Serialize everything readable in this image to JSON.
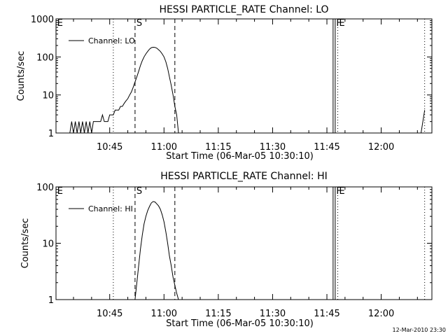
{
  "colors": {
    "background": "#ffffff",
    "foreground": "#000000"
  },
  "timestamp": "12-Mar-2010 23:30",
  "chart_data": [
    {
      "type": "line",
      "title": "HESSI PARTICLE_RATE Channel: LO",
      "xlabel": "Start Time (06-Mar-05 10:30:10)",
      "ylabel": "Counts/sec",
      "yscale": "log",
      "xlim": [
        "10:30:10",
        "12:14:00"
      ],
      "ylim": [
        1,
        1000
      ],
      "xticks": [
        "10:45",
        "11:00",
        "11:15",
        "11:30",
        "11:45",
        "12:00"
      ],
      "yticks": [
        "1",
        "10",
        "100",
        "1000"
      ],
      "legend": {
        "position": "top-left",
        "entries": [
          "Channel: LO"
        ]
      },
      "markers": [
        {
          "label": "S",
          "style": "dashed",
          "time": "10:52"
        },
        {
          "label": "",
          "style": "dashed",
          "time": "11:03"
        },
        {
          "label": "",
          "style": "dotted",
          "time": "10:46"
        },
        {
          "label": "F",
          "style": "solid",
          "time": "11:47"
        },
        {
          "label": "E",
          "style": "dotted",
          "time": "11:48"
        },
        {
          "label": "",
          "style": "dotted",
          "time": "12:12"
        },
        {
          "label": "E",
          "style": "none",
          "time": "10:30:30"
        }
      ],
      "series": [
        {
          "name": "Channel: LO",
          "segments": [
            {
              "x": [
                "10:34",
                "10:34:30",
                "10:35",
                "10:35:30",
                "10:36",
                "10:36:30",
                "10:37",
                "10:37:30",
                "10:38",
                "10:38:30",
                "10:39",
                "10:39:30",
                "10:40",
                "10:40:30",
                "10:41",
                "10:41:30",
                "10:42",
                "10:42:30",
                "10:43",
                "10:43:30",
                "10:44",
                "10:44:30",
                "10:45",
                "10:45:30",
                "10:46",
                "10:46:30",
                "10:47",
                "10:47:30",
                "10:48",
                "10:48:30",
                "10:49",
                "10:49:30",
                "10:50",
                "10:50:30",
                "10:51",
                "10:51:30",
                "10:52",
                "10:52:30",
                "10:53",
                "10:53:30",
                "10:54",
                "10:54:30",
                "10:55",
                "10:55:30",
                "10:56",
                "10:56:30",
                "10:57",
                "10:57:30",
                "10:58",
                "10:58:30",
                "10:59",
                "10:59:30",
                "11:00",
                "11:00:30",
                "11:01",
                "11:01:30",
                "11:02",
                "11:02:30",
                "11:03",
                "11:03:30",
                "11:04"
              ],
              "y": [
                1,
                2,
                1,
                2,
                1,
                2,
                1,
                2,
                1,
                2,
                1,
                2,
                1,
                2,
                2,
                2,
                2,
                2,
                3,
                2,
                2,
                2,
                3,
                3,
                3,
                4,
                4,
                4,
                5,
                5,
                6,
                7,
                8,
                10,
                12,
                16,
                22,
                30,
                42,
                60,
                80,
                100,
                120,
                140,
                160,
                175,
                180,
                178,
                170,
                155,
                140,
                120,
                100,
                75,
                50,
                30,
                18,
                10,
                5,
                3,
                1
              ]
            },
            {
              "x": [
                "12:11",
                "12:11:30",
                "12:12"
              ],
              "y": [
                1,
                2,
                4
              ]
            }
          ]
        }
      ]
    },
    {
      "type": "line",
      "title": "HESSI PARTICLE_RATE Channel: HI",
      "xlabel": "Start Time (06-Mar-05 10:30:10)",
      "ylabel": "Counts/sec",
      "yscale": "log",
      "xlim": [
        "10:30:10",
        "12:14:00"
      ],
      "ylim": [
        1,
        100
      ],
      "xticks": [
        "10:45",
        "11:00",
        "11:15",
        "11:30",
        "11:45",
        "12:00"
      ],
      "yticks": [
        "1",
        "10",
        "100"
      ],
      "legend": {
        "position": "top-left",
        "entries": [
          "Channel: HI"
        ]
      },
      "markers": [
        {
          "label": "S",
          "style": "dashed",
          "time": "10:52"
        },
        {
          "label": "",
          "style": "dashed",
          "time": "11:03"
        },
        {
          "label": "",
          "style": "dotted",
          "time": "10:46"
        },
        {
          "label": "F",
          "style": "solid",
          "time": "11:47"
        },
        {
          "label": "E",
          "style": "dotted",
          "time": "11:48"
        },
        {
          "label": "",
          "style": "dotted",
          "time": "12:12"
        },
        {
          "label": "E",
          "style": "none",
          "time": "10:30:30"
        }
      ],
      "series": [
        {
          "name": "Channel: HI",
          "segments": [
            {
              "x": [
                "10:52",
                "10:52:30",
                "10:53",
                "10:53:30",
                "10:54",
                "10:54:30",
                "10:55",
                "10:55:30",
                "10:56",
                "10:56:30",
                "10:57",
                "10:57:30",
                "10:58",
                "10:58:30",
                "10:59",
                "10:59:30",
                "11:00",
                "11:00:30",
                "11:01",
                "11:01:30",
                "11:02",
                "11:02:30",
                "11:03",
                "11:03:30",
                "11:04"
              ],
              "y": [
                1,
                2,
                4,
                8,
                14,
                22,
                30,
                38,
                45,
                52,
                55,
                54,
                50,
                46,
                40,
                32,
                24,
                16,
                10,
                6,
                4,
                2.5,
                1.8,
                1.3,
                1
              ]
            }
          ]
        }
      ]
    }
  ]
}
